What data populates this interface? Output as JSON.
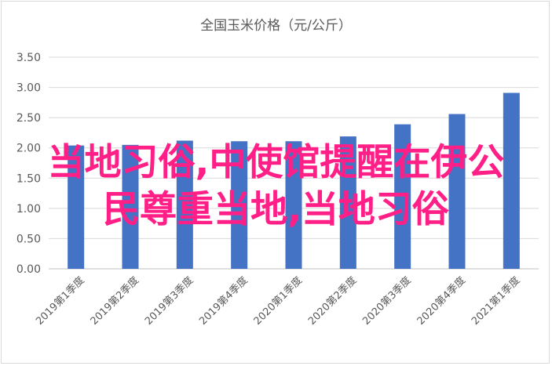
{
  "chart_data": {
    "type": "bar",
    "title": "全国玉米价格（元/公斤）",
    "categories": [
      "2019第1季度",
      "2019第2季度",
      "2019第3季度",
      "2019第4季度",
      "2020第1季度",
      "2020第2季度",
      "2020第3季度",
      "2020第4季度",
      "2021第1季度"
    ],
    "values": [
      2.04,
      2.05,
      2.12,
      2.11,
      2.11,
      2.19,
      2.39,
      2.56,
      2.91
    ],
    "ylim": [
      0,
      3.5
    ],
    "yticks": [
      "0.00",
      "0.50",
      "1.00",
      "1.50",
      "2.00",
      "2.50",
      "3.00",
      "3.50"
    ],
    "grid": true,
    "bar_color": "#4472c4"
  },
  "overlay": {
    "line1": "当地习俗,中使馆提醒在伊公",
    "line2": "民尊重当地,当地习俗",
    "color": "#ff1f86"
  }
}
